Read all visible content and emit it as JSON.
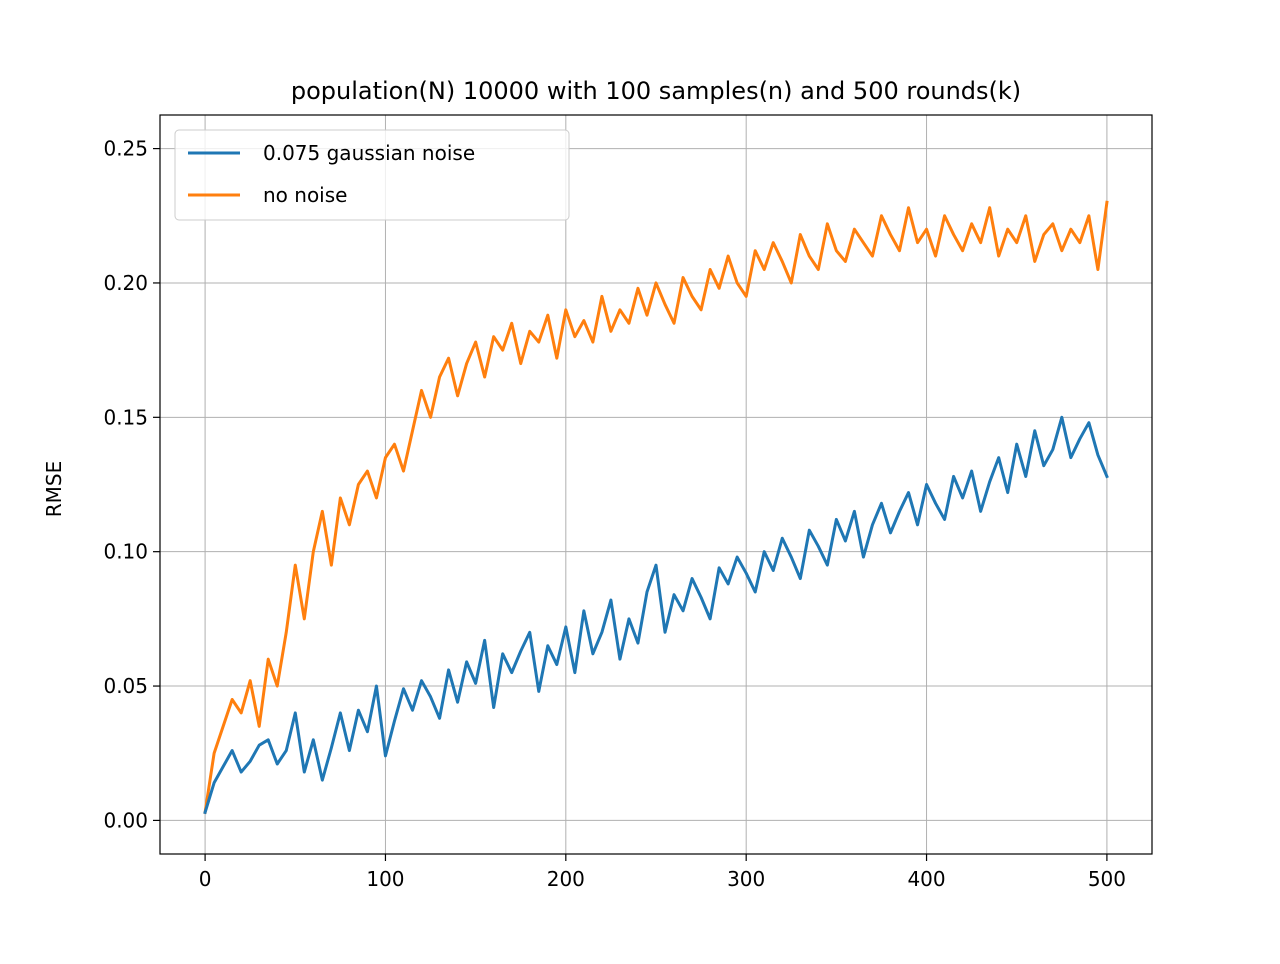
{
  "chart_data": {
    "type": "line",
    "title": "population(N) 10000 with 100 samples(n) and 500 rounds(k)",
    "xlabel": "",
    "ylabel": "RMSE",
    "xlim": [
      -25,
      525
    ],
    "ylim": [
      -0.0125,
      0.2625
    ],
    "xticks": [
      0,
      100,
      200,
      300,
      400,
      500
    ],
    "xtick_labels": [
      "0",
      "100",
      "200",
      "300",
      "400",
      "500"
    ],
    "yticks": [
      0.0,
      0.05,
      0.1,
      0.15,
      0.2,
      0.25
    ],
    "ytick_labels": [
      "0.00",
      "0.05",
      "0.10",
      "0.15",
      "0.20",
      "0.25"
    ],
    "grid": true,
    "legend_position": "top-left",
    "x_start": 0,
    "x_step": 5,
    "series": [
      {
        "name": "0.075 gaussian noise",
        "color": "#1f77b4",
        "values": [
          0.003,
          0.014,
          0.02,
          0.026,
          0.018,
          0.022,
          0.028,
          0.03,
          0.021,
          0.026,
          0.04,
          0.018,
          0.03,
          0.015,
          0.027,
          0.04,
          0.026,
          0.041,
          0.033,
          0.05,
          0.024,
          0.037,
          0.049,
          0.041,
          0.052,
          0.046,
          0.038,
          0.056,
          0.044,
          0.059,
          0.051,
          0.067,
          0.042,
          0.062,
          0.055,
          0.063,
          0.07,
          0.048,
          0.065,
          0.058,
          0.072,
          0.055,
          0.078,
          0.062,
          0.07,
          0.082,
          0.06,
          0.075,
          0.066,
          0.085,
          0.095,
          0.07,
          0.084,
          0.078,
          0.09,
          0.083,
          0.075,
          0.094,
          0.088,
          0.098,
          0.092,
          0.085,
          0.1,
          0.093,
          0.105,
          0.098,
          0.09,
          0.108,
          0.102,
          0.095,
          0.112,
          0.104,
          0.115,
          0.098,
          0.11,
          0.118,
          0.107,
          0.115,
          0.122,
          0.11,
          0.125,
          0.118,
          0.112,
          0.128,
          0.12,
          0.13,
          0.115,
          0.126,
          0.135,
          0.122,
          0.14,
          0.128,
          0.145,
          0.132,
          0.138,
          0.15,
          0.135,
          0.142,
          0.148,
          0.136,
          0.128
        ]
      },
      {
        "name": "no noise",
        "color": "#ff7f0e",
        "values": [
          0.003,
          0.025,
          0.035,
          0.045,
          0.04,
          0.052,
          0.035,
          0.06,
          0.05,
          0.07,
          0.095,
          0.075,
          0.1,
          0.115,
          0.095,
          0.12,
          0.11,
          0.125,
          0.13,
          0.12,
          0.135,
          0.14,
          0.13,
          0.145,
          0.16,
          0.15,
          0.165,
          0.172,
          0.158,
          0.17,
          0.178,
          0.165,
          0.18,
          0.175,
          0.185,
          0.17,
          0.182,
          0.178,
          0.188,
          0.172,
          0.19,
          0.18,
          0.186,
          0.178,
          0.195,
          0.182,
          0.19,
          0.185,
          0.198,
          0.188,
          0.2,
          0.192,
          0.185,
          0.202,
          0.195,
          0.19,
          0.205,
          0.198,
          0.21,
          0.2,
          0.195,
          0.212,
          0.205,
          0.215,
          0.208,
          0.2,
          0.218,
          0.21,
          0.205,
          0.222,
          0.212,
          0.208,
          0.22,
          0.215,
          0.21,
          0.225,
          0.218,
          0.212,
          0.228,
          0.215,
          0.22,
          0.21,
          0.225,
          0.218,
          0.212,
          0.222,
          0.215,
          0.228,
          0.21,
          0.22,
          0.215,
          0.225,
          0.208,
          0.218,
          0.222,
          0.212,
          0.22,
          0.215,
          0.225,
          0.205,
          0.23
        ]
      }
    ]
  }
}
